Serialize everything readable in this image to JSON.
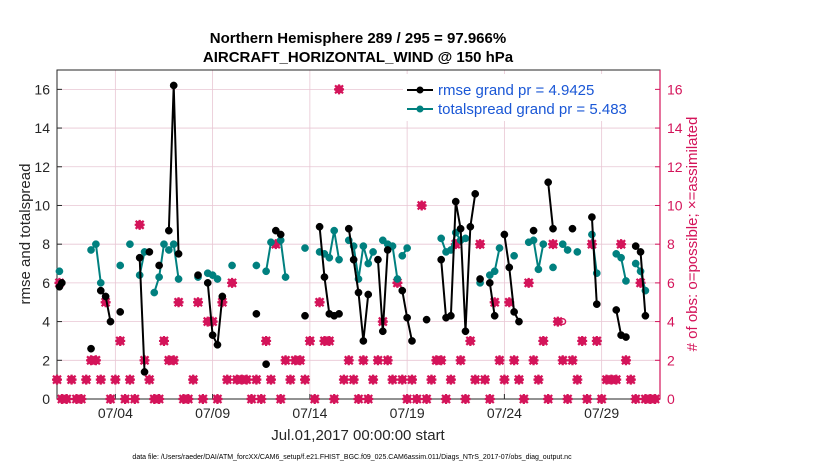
{
  "colors": {
    "rmse": "#000000",
    "spread": "#00807f",
    "obs": "#d4145a",
    "grid": "#e8c6d3",
    "legend_text": "#1a57d6"
  },
  "chart_data": {
    "type": "line",
    "title_line1": "Northern Hemisphere 289 / 295 = 97.966%",
    "title_line2": "AIRCRAFT_HORIZONTAL_WIND @ 150 hPa",
    "xlabel": "Jul.01,2017 00:00:00 start",
    "ylabel_left": "rmse and totalspread",
    "ylabel_right": "# of obs: o=possible; ×=assimilated",
    "footer": "data file: /Users/raeder/DAI/ATM_forcXX/CAM6_setup/f.e21.FHIST_BGC.f09_025.CAM6assim.011/Diags_NTrS_2017-07/obs_diag_output.nc",
    "xlim": [
      1,
      32
    ],
    "ylim_left": [
      0,
      17
    ],
    "ylim_right": [
      0,
      17
    ],
    "x_ticks": [
      4,
      9,
      14,
      19,
      24,
      29
    ],
    "x_tick_labels": [
      "07/04",
      "07/09",
      "07/14",
      "07/19",
      "07/24",
      "07/29"
    ],
    "y_ticks_left": [
      "0",
      "2",
      "4",
      "6",
      "8",
      "10",
      "12",
      "14",
      "16"
    ],
    "y_ticks_right": [
      "0",
      "2",
      "4",
      "6",
      "8",
      "10",
      "12",
      "14",
      "16"
    ],
    "legend": [
      "rmse grand pr = 4.9425",
      "totalspread grand pr = 5.483"
    ],
    "series": [
      {
        "name": "rmse",
        "segments": [
          [
            [
              1.125,
              5.8
            ],
            [
              1.25,
              6.0
            ]
          ],
          [
            [
              2.75,
              2.6
            ]
          ],
          [
            [
              3.25,
              5.6
            ],
            [
              3.5,
              5.3
            ],
            [
              3.75,
              4.0
            ]
          ],
          [
            [
              4.25,
              4.5
            ]
          ],
          [
            [
              5.25,
              7.3
            ],
            [
              5.5,
              1.4
            ]
          ],
          [
            [
              5.75,
              7.6
            ]
          ],
          [
            [
              6.25,
              6.9
            ]
          ],
          [
            [
              6.75,
              8.7
            ],
            [
              7.0,
              16.2
            ],
            [
              7.25,
              7.5
            ]
          ],
          [
            [
              8.25,
              6.4
            ]
          ],
          [
            [
              8.75,
              6.0
            ],
            [
              9.0,
              3.3
            ],
            [
              9.25,
              2.8
            ],
            [
              9.5,
              5.3
            ]
          ],
          [
            [
              11.25,
              4.4
            ]
          ],
          [
            [
              11.75,
              1.8
            ]
          ],
          [
            [
              12.25,
              8.7
            ],
            [
              12.5,
              8.5
            ]
          ],
          [
            [
              13.75,
              4.3
            ]
          ],
          [
            [
              14.5,
              8.9
            ],
            [
              14.75,
              6.3
            ],
            [
              15.0,
              4.4
            ],
            [
              15.25,
              4.3
            ],
            [
              15.5,
              4.4
            ]
          ],
          [
            [
              16.0,
              8.8
            ],
            [
              16.25,
              7.2
            ],
            [
              16.5,
              5.5
            ],
            [
              16.75,
              3.0
            ],
            [
              17.0,
              5.4
            ]
          ],
          [
            [
              17.5,
              7.2
            ],
            [
              17.75,
              3.5
            ],
            [
              18.0,
              7.7
            ]
          ],
          [
            [
              18.75,
              5.6
            ],
            [
              19.0,
              4.2
            ],
            [
              19.25,
              3.0
            ]
          ],
          [
            [
              20.0,
              4.1
            ]
          ],
          [
            [
              20.75,
              7.2
            ],
            [
              21.0,
              4.2
            ],
            [
              21.25,
              4.3
            ],
            [
              21.5,
              10.2
            ],
            [
              21.75,
              8.8
            ],
            [
              22.0,
              3.5
            ],
            [
              22.25,
              8.9
            ],
            [
              22.5,
              10.6
            ]
          ],
          [
            [
              22.75,
              6.2
            ]
          ],
          [
            [
              23.25,
              6.0
            ],
            [
              23.5,
              4.3
            ]
          ],
          [
            [
              24.0,
              8.5
            ],
            [
              24.25,
              6.8
            ],
            [
              24.5,
              4.5
            ],
            [
              24.75,
              4.0
            ]
          ],
          [
            [
              25.5,
              8.7
            ]
          ],
          [
            [
              26.25,
              11.2
            ],
            [
              26.5,
              8.8
            ]
          ],
          [
            [
              27.5,
              8.8
            ]
          ],
          [
            [
              28.5,
              9.4
            ],
            [
              28.75,
              4.9
            ]
          ],
          [
            [
              29.75,
              4.6
            ],
            [
              30.0,
              3.3
            ],
            [
              30.25,
              3.2
            ]
          ],
          [
            [
              30.75,
              7.9
            ],
            [
              31.0,
              7.6
            ],
            [
              31.25,
              4.3
            ]
          ]
        ]
      },
      {
        "name": "totalspread",
        "segments": [
          [
            [
              1.125,
              6.6
            ]
          ],
          [
            [
              2.75,
              7.7
            ],
            [
              3.0,
              8.0
            ],
            [
              3.25,
              6.0
            ]
          ],
          [
            [
              4.25,
              6.9
            ]
          ],
          [
            [
              4.75,
              8.0
            ]
          ],
          [
            [
              5.25,
              6.4
            ],
            [
              5.5,
              7.6
            ]
          ],
          [
            [
              6.0,
              5.5
            ],
            [
              6.25,
              6.3
            ],
            [
              6.5,
              8.0
            ]
          ],
          [
            [
              6.75,
              7.7
            ],
            [
              7.0,
              8.0
            ],
            [
              7.25,
              6.2
            ]
          ],
          [
            [
              8.25,
              6.3
            ]
          ],
          [
            [
              8.75,
              6.5
            ],
            [
              9.0,
              6.4
            ],
            [
              9.25,
              6.2
            ]
          ],
          [
            [
              10.0,
              6.9
            ]
          ],
          [
            [
              11.25,
              6.9
            ]
          ],
          [
            [
              11.75,
              6.6
            ],
            [
              12.0,
              8.1
            ]
          ],
          [
            [
              12.5,
              8.2
            ],
            [
              12.75,
              6.3
            ]
          ],
          [
            [
              13.75,
              7.8
            ]
          ],
          [
            [
              14.5,
              7.6
            ],
            [
              14.75,
              7.5
            ],
            [
              15.0,
              7.3
            ],
            [
              15.25,
              8.7
            ],
            [
              15.5,
              7.2
            ]
          ],
          [
            [
              16.0,
              8.2
            ],
            [
              16.25,
              7.9
            ],
            [
              16.5,
              6.2
            ],
            [
              16.75,
              7.9
            ],
            [
              17.0,
              7.0
            ],
            [
              17.25,
              7.6
            ]
          ],
          [
            [
              17.75,
              8.2
            ],
            [
              18.0,
              8.0
            ],
            [
              18.25,
              7.9
            ],
            [
              18.5,
              6.2
            ]
          ],
          [
            [
              18.75,
              7.4
            ],
            [
              19.0,
              7.8
            ]
          ],
          [
            [
              20.75,
              8.3
            ],
            [
              21.0,
              7.6
            ],
            [
              21.25,
              7.7
            ],
            [
              21.5,
              8.6
            ],
            [
              21.75,
              8.2
            ],
            [
              22.0,
              8.3
            ]
          ],
          [
            [
              22.75,
              6.0
            ]
          ],
          [
            [
              23.25,
              6.4
            ],
            [
              23.5,
              6.6
            ],
            [
              23.75,
              7.8
            ]
          ],
          [
            [
              24.5,
              7.4
            ]
          ],
          [
            [
              25.25,
              8.1
            ],
            [
              25.5,
              8.2
            ],
            [
              25.75,
              6.7
            ],
            [
              26.0,
              8.0
            ]
          ],
          [
            [
              26.5,
              6.8
            ]
          ],
          [
            [
              27.0,
              8.0
            ],
            [
              27.25,
              7.7
            ]
          ],
          [
            [
              27.75,
              7.6
            ]
          ],
          [
            [
              28.5,
              8.5
            ],
            [
              28.75,
              6.5
            ]
          ],
          [
            [
              29.75,
              7.5
            ],
            [
              30.0,
              7.3
            ],
            [
              30.25,
              6.1
            ]
          ],
          [
            [
              30.75,
              7.0
            ],
            [
              31.0,
              6.6
            ],
            [
              31.25,
              5.6
            ]
          ]
        ]
      }
    ],
    "obs_possible": [
      [
        1.0,
        1.0
      ],
      [
        1.125,
        6.0
      ],
      [
        1.25,
        0
      ],
      [
        1.5,
        0
      ],
      [
        1.75,
        1.0
      ],
      [
        2.0,
        0
      ],
      [
        2.25,
        0
      ],
      [
        2.5,
        1.0
      ],
      [
        2.75,
        2.0
      ],
      [
        3.0,
        2.0
      ],
      [
        3.25,
        1.0
      ],
      [
        3.5,
        5.0
      ],
      [
        3.75,
        0
      ],
      [
        4.0,
        1.0
      ],
      [
        4.25,
        3.0
      ],
      [
        4.5,
        0
      ],
      [
        4.75,
        1.0
      ],
      [
        5.0,
        0
      ],
      [
        5.25,
        9.0
      ],
      [
        5.5,
        2.0
      ],
      [
        5.75,
        1.0
      ],
      [
        6.0,
        0
      ],
      [
        6.25,
        0
      ],
      [
        6.5,
        3.0
      ],
      [
        6.75,
        2.0
      ],
      [
        7.0,
        2.0
      ],
      [
        7.25,
        5.0
      ],
      [
        7.5,
        0
      ],
      [
        7.75,
        0
      ],
      [
        8.0,
        1.0
      ],
      [
        8.25,
        5.0
      ],
      [
        8.5,
        0
      ],
      [
        8.75,
        4.0
      ],
      [
        9.0,
        4.0
      ],
      [
        9.25,
        0
      ],
      [
        9.5,
        5.0
      ],
      [
        9.75,
        1.0
      ],
      [
        10.0,
        6.0
      ],
      [
        10.25,
        1.0
      ],
      [
        10.5,
        1.0
      ],
      [
        10.75,
        1.0
      ],
      [
        11.0,
        0
      ],
      [
        11.25,
        1.0
      ],
      [
        11.5,
        0
      ],
      [
        11.75,
        3.0
      ],
      [
        12.0,
        1.0
      ],
      [
        12.25,
        8.0
      ],
      [
        12.5,
        0
      ],
      [
        12.75,
        2.0
      ],
      [
        13.0,
        1.0
      ],
      [
        13.25,
        2.0
      ],
      [
        13.5,
        2.0
      ],
      [
        13.75,
        1.0
      ],
      [
        14.0,
        3.0
      ],
      [
        14.25,
        0
      ],
      [
        14.5,
        5.0
      ],
      [
        14.75,
        3.0
      ],
      [
        15.0,
        3.0
      ],
      [
        15.25,
        0
      ],
      [
        15.5,
        16.0
      ],
      [
        15.75,
        1.0
      ],
      [
        16.0,
        2.0
      ],
      [
        16.25,
        1.0
      ],
      [
        16.5,
        0
      ],
      [
        16.75,
        2.0
      ],
      [
        17.0,
        0
      ],
      [
        17.25,
        1.0
      ],
      [
        17.5,
        2.0
      ],
      [
        17.75,
        4.0
      ],
      [
        18.0,
        2.0
      ],
      [
        18.25,
        1.0
      ],
      [
        18.5,
        6.0
      ],
      [
        18.75,
        1.0
      ],
      [
        19.0,
        0
      ],
      [
        19.25,
        1.0
      ],
      [
        19.5,
        0
      ],
      [
        19.75,
        10.0
      ],
      [
        20.0,
        0
      ],
      [
        20.25,
        1.0
      ],
      [
        20.5,
        2.0
      ],
      [
        20.75,
        2.0
      ],
      [
        21.0,
        0
      ],
      [
        21.25,
        1.0
      ],
      [
        21.5,
        8.0
      ],
      [
        21.75,
        2.0
      ],
      [
        22.0,
        0
      ],
      [
        22.25,
        3.0
      ],
      [
        22.5,
        1.0
      ],
      [
        22.75,
        8.0
      ],
      [
        23.0,
        1.0
      ],
      [
        23.25,
        0
      ],
      [
        23.5,
        5.0
      ],
      [
        23.75,
        2.0
      ],
      [
        24.0,
        1.0
      ],
      [
        24.25,
        5.0
      ],
      [
        24.5,
        2.0
      ],
      [
        24.75,
        1.0
      ],
      [
        25.0,
        0
      ],
      [
        25.25,
        6.0
      ],
      [
        25.5,
        2.0
      ],
      [
        25.75,
        1.0
      ],
      [
        26.0,
        3.0
      ],
      [
        26.25,
        0
      ],
      [
        26.5,
        8.0
      ],
      [
        26.75,
        4.0
      ],
      [
        27.0,
        2.0
      ],
      [
        27.25,
        0
      ],
      [
        27.5,
        2.0
      ],
      [
        27.75,
        1.0
      ],
      [
        28.0,
        3.0
      ],
      [
        28.25,
        0
      ],
      [
        28.5,
        8.0
      ],
      [
        28.75,
        3.0
      ],
      [
        29.0,
        0
      ],
      [
        29.25,
        1.0
      ],
      [
        29.5,
        1.0
      ],
      [
        29.75,
        1.0
      ],
      [
        30.0,
        8.0
      ],
      [
        30.25,
        2.0
      ],
      [
        30.5,
        1.0
      ],
      [
        30.75,
        0
      ],
      [
        31.0,
        6.0
      ],
      [
        31.25,
        0
      ],
      [
        31.5,
        0
      ],
      [
        31.75,
        0
      ]
    ],
    "obs_assimilated_only": [
      [
        12.25,
        8.0
      ],
      [
        13.25,
        2.0
      ],
      [
        23.5,
        5.0
      ],
      [
        27.0,
        4.0
      ]
    ]
  }
}
